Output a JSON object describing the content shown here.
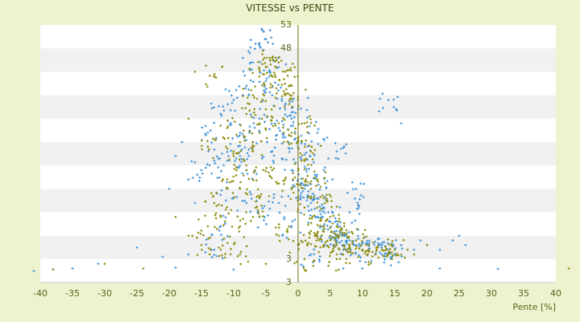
{
  "chart_data": {
    "type": "scatter",
    "title": "VITESSE vs PENTE",
    "xlabel": "Pente [%]",
    "ylabel": "",
    "xlim": [
      -40,
      40
    ],
    "ylim": [
      -2,
      53
    ],
    "x_ticks": [
      "-40",
      "-35",
      "-30",
      "-25",
      "-20",
      "-15",
      "-10",
      "-5",
      "0",
      "5",
      "10",
      "15",
      "20",
      "25",
      "30",
      "35",
      "40"
    ],
    "y_ticks": [
      "53",
      "48",
      "3",
      "3"
    ],
    "grid": "horizontal bands",
    "legend": "none",
    "colors": {
      "series_a": "#3a8fd6",
      "series_b": "#8f8f12",
      "axis": "#6b6b10",
      "band": "#f1f1f1"
    },
    "series": [
      {
        "label": "",
        "marker": "blue-plus",
        "points": [
          [
            -41,
            0.5
          ],
          [
            -38,
            0.8
          ],
          [
            -35,
            1.0
          ],
          [
            -31,
            2.0
          ],
          [
            -25,
            5.5
          ],
          [
            -21,
            3.5
          ],
          [
            -19,
            1.2
          ],
          [
            -17,
            4.0
          ],
          [
            -13,
            5.0
          ],
          [
            -20,
            18
          ],
          [
            -19,
            25
          ],
          [
            -18,
            28
          ],
          [
            -17,
            20
          ],
          [
            -16,
            15
          ],
          [
            -15,
            22
          ],
          [
            -14,
            30
          ],
          [
            -13,
            24
          ],
          [
            -12,
            34
          ],
          [
            -11,
            18
          ],
          [
            -10,
            37
          ],
          [
            -9,
            30
          ],
          [
            -9,
            25
          ],
          [
            -8,
            40
          ],
          [
            -8,
            22
          ],
          [
            -7,
            45
          ],
          [
            -7,
            28
          ],
          [
            -6,
            33
          ],
          [
            -6,
            49
          ],
          [
            -5,
            50
          ],
          [
            -5,
            41
          ],
          [
            -4,
            38
          ],
          [
            -4,
            26
          ],
          [
            -3,
            44
          ],
          [
            -3,
            31
          ],
          [
            -2,
            29
          ],
          [
            -2,
            36
          ],
          [
            -1,
            33
          ],
          [
            -1,
            22
          ],
          [
            0,
            27
          ],
          [
            0,
            20
          ],
          [
            1,
            24
          ],
          [
            1,
            18
          ],
          [
            2,
            19
          ],
          [
            2,
            15
          ],
          [
            3,
            16
          ],
          [
            3,
            12
          ],
          [
            4,
            14
          ],
          [
            4,
            10
          ],
          [
            5,
            11
          ],
          [
            5,
            8
          ],
          [
            6,
            9
          ],
          [
            6,
            7
          ],
          [
            7,
            8
          ],
          [
            7,
            6
          ],
          [
            8,
            7
          ],
          [
            9,
            6
          ],
          [
            10,
            5
          ],
          [
            11,
            5
          ],
          [
            12,
            4
          ],
          [
            13,
            4
          ],
          [
            14,
            5
          ],
          [
            15,
            4
          ],
          [
            16,
            6
          ],
          [
            18,
            5
          ],
          [
            19,
            7
          ],
          [
            20,
            6
          ],
          [
            22,
            5
          ],
          [
            24,
            7
          ],
          [
            25,
            8
          ],
          [
            26,
            6
          ],
          [
            14,
            37
          ],
          [
            16,
            32
          ],
          [
            6,
            26
          ],
          [
            9,
            18
          ],
          [
            3,
            30
          ],
          [
            -1,
            10
          ],
          [
            2,
            4
          ],
          [
            7,
            1
          ],
          [
            10,
            1
          ],
          [
            22,
            1
          ],
          [
            31,
            0.9
          ],
          [
            -10,
            0.8
          ],
          [
            -12,
            10
          ],
          [
            -6,
            12
          ],
          [
            -8,
            15
          ],
          [
            -11,
            24
          ],
          [
            -3,
            15
          ],
          [
            0,
            35
          ],
          [
            4,
            22
          ],
          [
            8,
            13
          ]
        ]
      },
      {
        "label": "",
        "marker": "olive-diamond",
        "points": [
          [
            -38,
            0.8
          ],
          [
            -30,
            2.0
          ],
          [
            -24,
            1.0
          ],
          [
            -19,
            12
          ],
          [
            -17,
            8
          ],
          [
            -15,
            6
          ],
          [
            -14,
            10
          ],
          [
            -13,
            15
          ],
          [
            -12,
            12
          ],
          [
            -11,
            20
          ],
          [
            -10,
            25
          ],
          [
            -9,
            28
          ],
          [
            -9,
            18
          ],
          [
            -8,
            34
          ],
          [
            -8,
            22
          ],
          [
            -7,
            38
          ],
          [
            -7,
            26
          ],
          [
            -6,
            42
          ],
          [
            -6,
            30
          ],
          [
            -5,
            44
          ],
          [
            -5,
            35
          ],
          [
            -4,
            46
          ],
          [
            -4,
            40
          ],
          [
            -3,
            45
          ],
          [
            -3,
            32
          ],
          [
            -2,
            43
          ],
          [
            -2,
            38
          ],
          [
            -1,
            40
          ],
          [
            -1,
            30
          ],
          [
            0,
            37
          ],
          [
            0,
            28
          ],
          [
            1,
            32
          ],
          [
            1,
            24
          ],
          [
            2,
            26
          ],
          [
            2,
            18
          ],
          [
            3,
            20
          ],
          [
            3,
            14
          ],
          [
            4,
            16
          ],
          [
            4,
            10
          ],
          [
            5,
            12
          ],
          [
            5,
            8
          ],
          [
            6,
            10
          ],
          [
            6,
            6
          ],
          [
            7,
            8
          ],
          [
            8,
            6
          ],
          [
            9,
            7
          ],
          [
            10,
            5
          ],
          [
            11,
            6
          ],
          [
            12,
            4
          ],
          [
            13,
            5
          ],
          [
            14,
            4
          ],
          [
            15,
            5
          ],
          [
            16,
            4
          ],
          [
            17,
            5
          ],
          [
            18,
            4
          ],
          [
            20,
            6
          ],
          [
            -16,
            43
          ],
          [
            -13,
            42
          ],
          [
            -2,
            20
          ],
          [
            1,
            14
          ],
          [
            3,
            8
          ],
          [
            6,
            3
          ],
          [
            -12,
            5
          ],
          [
            -9,
            10
          ],
          [
            -6,
            16
          ],
          [
            -4,
            22
          ],
          [
            -1,
            18
          ],
          [
            2,
            9
          ],
          [
            4,
            6
          ],
          [
            7,
            4
          ],
          [
            42,
            1.0
          ],
          [
            -17,
            33
          ],
          [
            -14,
            27
          ],
          [
            -11,
            31
          ],
          [
            -7,
            12
          ],
          [
            -3,
            8
          ],
          [
            0,
            6
          ],
          [
            1,
            3
          ],
          [
            -5,
            2
          ],
          [
            -9,
            4
          ]
        ]
      }
    ]
  }
}
